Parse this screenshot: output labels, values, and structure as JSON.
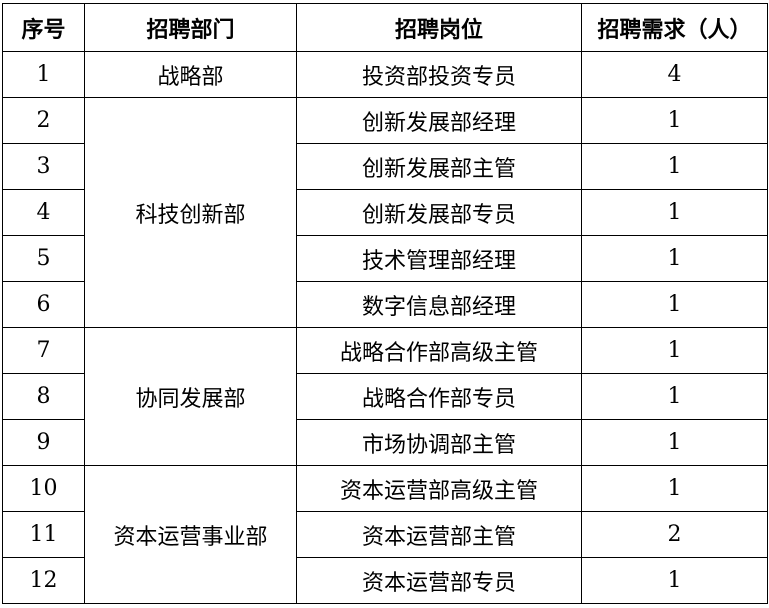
{
  "headers": [
    "序号",
    "招聘部门",
    "招聘岗位",
    "招聘需求（人）"
  ],
  "rows": [
    {
      "no": "1",
      "dept": "战略部",
      "position": "投资部投资专员",
      "count": "4"
    },
    {
      "no": "2",
      "dept": "科技创新部",
      "position": "创新发展部经理",
      "count": "1"
    },
    {
      "no": "3",
      "position": "创新发展部主管",
      "count": "1"
    },
    {
      "no": "4",
      "position": "创新发展部专员",
      "count": "1"
    },
    {
      "no": "5",
      "position": "技术管理部经理",
      "count": "1"
    },
    {
      "no": "6",
      "position": "数字信息部经理",
      "count": "1"
    },
    {
      "no": "7",
      "dept": "协同发展部",
      "position": "战略合作部高级主管",
      "count": "1"
    },
    {
      "no": "8",
      "position": "战略合作部专员",
      "count": "1"
    },
    {
      "no": "9",
      "position": "市场协调部主管",
      "count": "1"
    },
    {
      "no": "10",
      "dept": "资本运营事业部",
      "position": "资本运营部高级主管",
      "count": "1"
    },
    {
      "no": "11",
      "position": "资本运营部主管",
      "count": "2"
    },
    {
      "no": "12",
      "position": "资本运营部专员",
      "count": "1"
    }
  ]
}
